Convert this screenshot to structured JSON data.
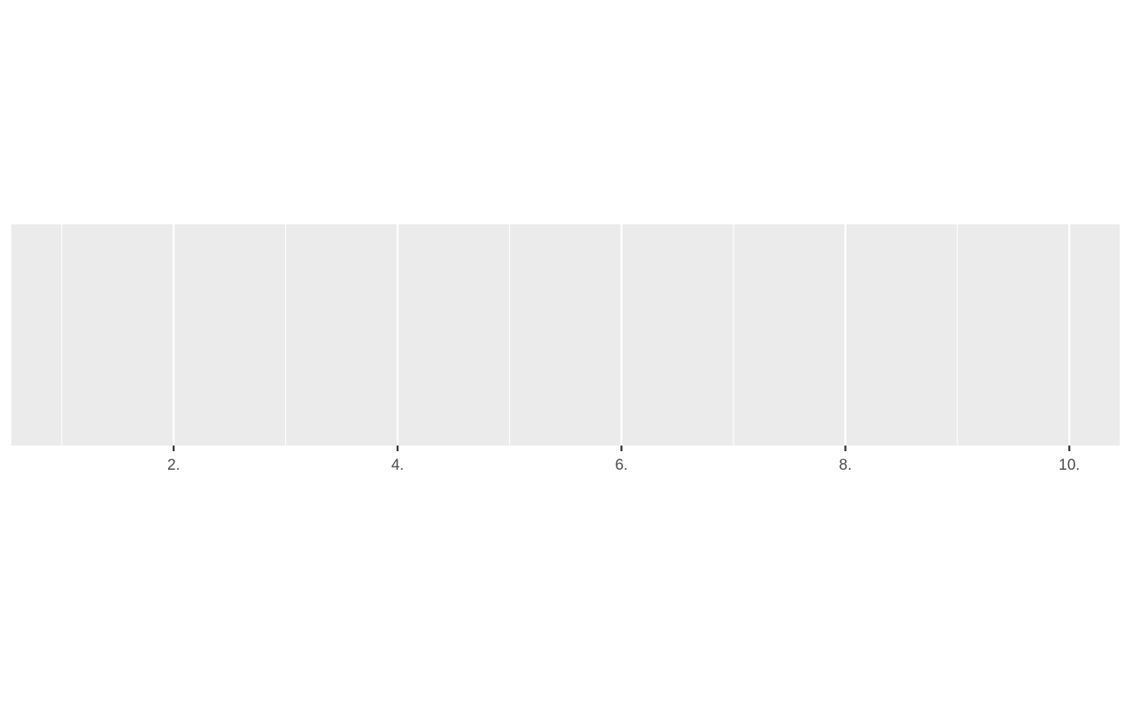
{
  "chart_data": {
    "type": "scatter",
    "title": "",
    "xlabel": "",
    "ylabel": "",
    "x": [],
    "y": [],
    "xlim": [
      0.55,
      10.45
    ],
    "x_major_ticks": [
      2,
      4,
      6,
      8,
      10
    ],
    "x_minor_gridlines": [
      1,
      3,
      5,
      7,
      9
    ],
    "x_tick_labels": [
      "2.",
      "4.",
      "6.",
      "8.",
      "10."
    ],
    "y_axis_visible": false,
    "grid": true,
    "legend": "none",
    "colors": {
      "panel_background": "#EBEBEB",
      "major_grid": "#FFFFFF",
      "minor_grid": "#FFFFFF",
      "tick_mark": "#333333",
      "tick_label": "#4D4D4D",
      "page_background": "#FFFFFF"
    }
  }
}
